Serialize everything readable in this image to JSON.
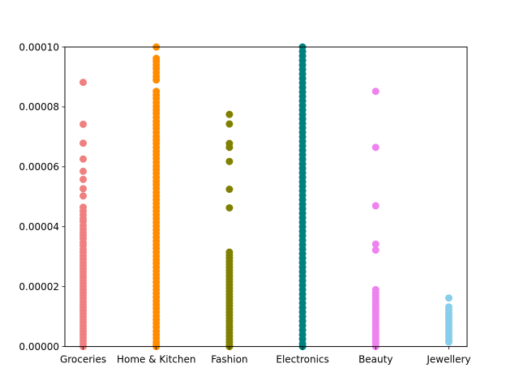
{
  "chart_data": {
    "type": "scatter",
    "xlabel": "",
    "ylabel": "",
    "ylim": [
      0,
      0.0001
    ],
    "y_ticks": [
      "0.00000",
      "0.00002",
      "0.00004",
      "0.00006",
      "0.00008",
      "0.00010"
    ],
    "categories": [
      "Groceries",
      "Home & Kitchen",
      "Fashion",
      "Electronics",
      "Beauty",
      "Jewellery"
    ],
    "grid": false,
    "legend": "none",
    "series": [
      {
        "category": "Groceries",
        "color": "#f08080",
        "values": [
          8.82e-05,
          7.42e-05,
          6.79e-05,
          6.26e-05,
          5.85e-05,
          5.58e-05,
          5.27e-05,
          5.03e-05,
          4.65e-05,
          4.52e-05,
          4.4e-05,
          4.28e-05,
          4.18e-05,
          4.04e-05,
          3.92e-05,
          3.8e-05,
          3.7e-05,
          3.6e-05,
          3.48e-05,
          3.38e-05,
          3.25e-05,
          3.15e-05,
          3.03e-05,
          2.92e-05,
          2.8e-05,
          2.7e-05,
          2.6e-05,
          2.5e-05,
          2.4e-05,
          2.3e-05,
          2.2e-05,
          2.1e-05,
          2e-05,
          1.9e-05,
          1.8e-05,
          1.7e-05,
          1.6e-05,
          1.5e-05,
          1.4e-05,
          1.3e-05,
          1.2e-05,
          1.1e-05,
          1e-05,
          9e-06,
          8e-06,
          7e-06,
          6e-06,
          5e-06,
          4e-06,
          3e-06,
          2e-06,
          1e-06,
          0.0
        ]
      },
      {
        "category": "Home & Kitchen",
        "color": "#ff8c00",
        "values": [
          0.0001,
          9.62e-05,
          9.52e-05,
          9.4e-05,
          9.28e-05,
          9.15e-05,
          9.02e-05,
          8.9e-05,
          8.52e-05,
          8.4e-05,
          8.28e-05,
          8.15e-05,
          8.02e-05,
          7.9e-05,
          7.78e-05,
          7.65e-05,
          7.52e-05,
          7.4e-05,
          7.28e-05,
          7.15e-05,
          7.02e-05,
          6.9e-05,
          6.78e-05,
          6.65e-05,
          6.52e-05,
          6.4e-05,
          6.28e-05,
          6.15e-05,
          6.02e-05,
          5.9e-05,
          5.78e-05,
          5.65e-05,
          5.52e-05,
          5.4e-05,
          5.28e-05,
          5.15e-05,
          5.02e-05,
          4.9e-05,
          4.78e-05,
          4.65e-05,
          4.52e-05,
          4.4e-05,
          4.28e-05,
          4.15e-05,
          4.02e-05,
          3.9e-05,
          3.78e-05,
          3.65e-05,
          3.52e-05,
          3.4e-05,
          3.28e-05,
          3.15e-05,
          3.02e-05,
          2.9e-05,
          2.78e-05,
          2.65e-05,
          2.52e-05,
          2.4e-05,
          2.28e-05,
          2.15e-05,
          2.02e-05,
          1.9e-05,
          1.78e-05,
          1.65e-05,
          1.52e-05,
          1.4e-05,
          1.28e-05,
          1.15e-05,
          1.02e-05,
          9e-06,
          7.8e-06,
          6.5e-06,
          5.2e-06,
          4e-06,
          2.8e-06,
          1.5e-06,
          5e-07,
          0.0
        ]
      },
      {
        "category": "Fashion",
        "color": "#808000",
        "values": [
          7.75e-05,
          7.43e-05,
          6.78e-05,
          6.65e-05,
          6.18e-05,
          5.25e-05,
          4.63e-05,
          3.15e-05,
          3.05e-05,
          2.95e-05,
          2.85e-05,
          2.75e-05,
          2.65e-05,
          2.55e-05,
          2.45e-05,
          2.35e-05,
          2.25e-05,
          2.15e-05,
          2.05e-05,
          1.95e-05,
          1.85e-05,
          1.75e-05,
          1.65e-05,
          1.55e-05,
          1.45e-05,
          1.35e-05,
          1.25e-05,
          1.15e-05,
          1.05e-05,
          9.5e-06,
          8.5e-06,
          7.5e-06,
          6.5e-06,
          5.5e-06,
          4.5e-06,
          3.5e-06,
          2.5e-06,
          1.5e-06,
          5e-07,
          0.0
        ]
      },
      {
        "category": "Electronics",
        "color": "#008080",
        "values": [
          0.0001,
          9.85e-05,
          9.7e-05,
          9.55e-05,
          9.4e-05,
          9.25e-05,
          9.1e-05,
          8.95e-05,
          8.8e-05,
          8.65e-05,
          8.5e-05,
          8.35e-05,
          8.2e-05,
          8.05e-05,
          7.9e-05,
          7.75e-05,
          7.6e-05,
          7.45e-05,
          7.3e-05,
          7.15e-05,
          7e-05,
          6.85e-05,
          6.7e-05,
          6.55e-05,
          6.4e-05,
          6.25e-05,
          6.1e-05,
          5.95e-05,
          5.8e-05,
          5.65e-05,
          5.5e-05,
          5.35e-05,
          5.2e-05,
          5.05e-05,
          4.9e-05,
          4.75e-05,
          4.6e-05,
          4.45e-05,
          4.3e-05,
          4.15e-05,
          4e-05,
          3.85e-05,
          3.7e-05,
          3.55e-05,
          3.4e-05,
          3.25e-05,
          3.1e-05,
          2.95e-05,
          2.8e-05,
          2.65e-05,
          2.5e-05,
          2.35e-05,
          2.2e-05,
          2.05e-05,
          1.9e-05,
          1.75e-05,
          1.6e-05,
          1.45e-05,
          1.3e-05,
          1.15e-05,
          1e-05,
          8.5e-06,
          7e-06,
          5.5e-06,
          4e-06,
          2.5e-06,
          1e-06,
          0.0
        ]
      },
      {
        "category": "Beauty",
        "color": "#ee82ee",
        "values": [
          8.52e-05,
          6.65e-05,
          4.7e-05,
          3.42e-05,
          3.22e-05,
          1.9e-05,
          1.8e-05,
          1.7e-05,
          1.6e-05,
          1.5e-05,
          1.4e-05,
          1.3e-05,
          1.2e-05,
          1.1e-05,
          1e-05,
          9e-06,
          8e-06,
          7e-06,
          6e-06,
          5e-06,
          4e-06,
          3e-06,
          2e-06,
          1e-06,
          0.0
        ]
      },
      {
        "category": "Jewellery",
        "color": "#87ceeb",
        "values": [
          1.62e-05,
          1.32e-05,
          1.22e-05,
          1.12e-05,
          1.02e-05,
          9.2e-06,
          8.2e-06,
          7.2e-06,
          6.2e-06,
          5.2e-06,
          4.2e-06,
          3.2e-06,
          2.2e-06,
          1.5e-06
        ]
      }
    ]
  }
}
